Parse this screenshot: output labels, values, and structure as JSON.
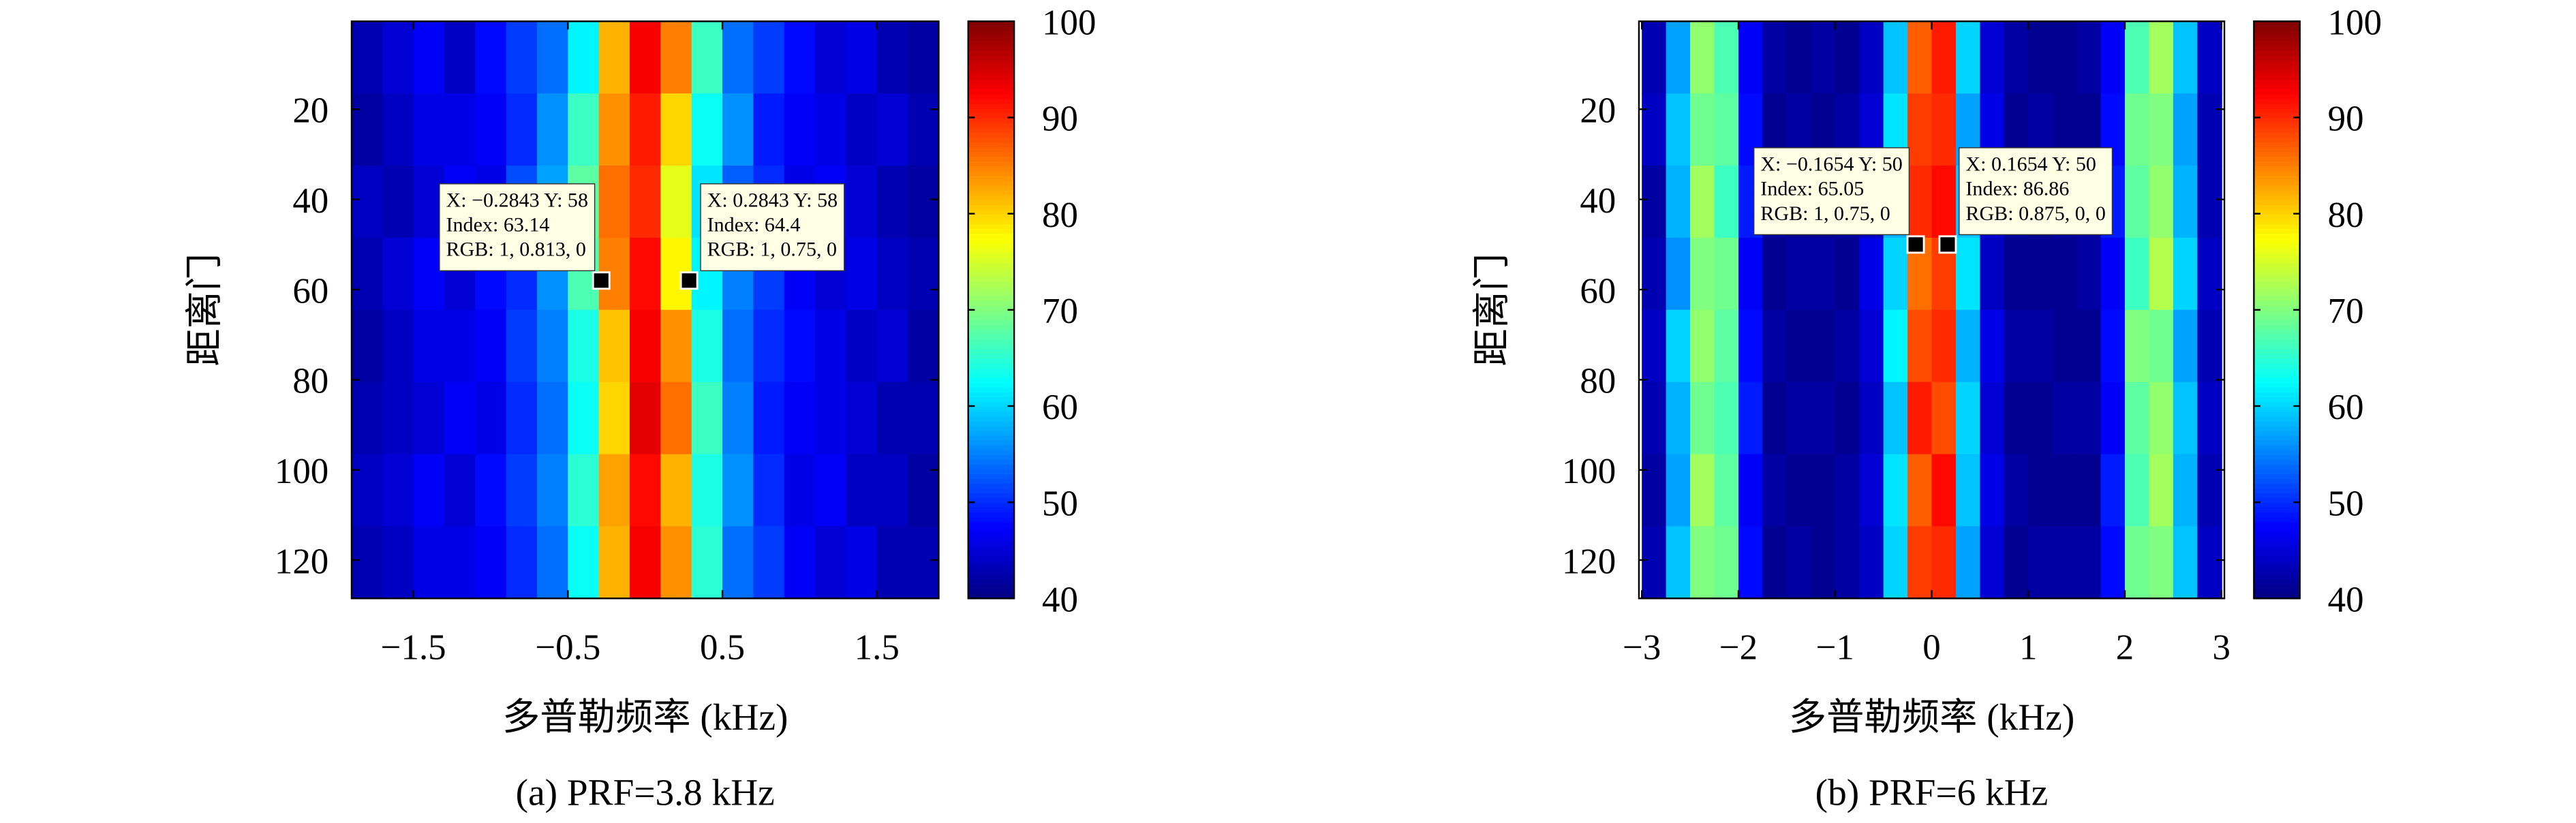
{
  "chart_data": [
    {
      "type": "heatmap",
      "colormap": "jet",
      "x": [
        -1.8,
        -1.6,
        -1.4,
        -1.2,
        -1.0,
        -0.8,
        -0.6,
        -0.4,
        -0.2,
        0,
        0.2,
        0.4,
        0.6,
        0.8,
        1.0,
        1.2,
        1.4,
        1.6,
        1.8
      ],
      "y": [
        8.5,
        24.5,
        40.5,
        56.5,
        72.5,
        88.5,
        104.5,
        120.5
      ],
      "values": [
        [
          43,
          45,
          47,
          44,
          48,
          51,
          54,
          62,
          82,
          93,
          85,
          66,
          54,
          51,
          48,
          45,
          46,
          43,
          42
        ],
        [
          42,
          44,
          46,
          46,
          47,
          50,
          56,
          66,
          84,
          91,
          80,
          63,
          56,
          49,
          47,
          46,
          44,
          45,
          43
        ],
        [
          44,
          43,
          45,
          47,
          46,
          52,
          57,
          68,
          86,
          90,
          76,
          61,
          53,
          50,
          46,
          47,
          45,
          43,
          42
        ],
        [
          43,
          45,
          47,
          45,
          48,
          50,
          56,
          67,
          85,
          92,
          78,
          62,
          55,
          51,
          47,
          45,
          46,
          44,
          43
        ],
        [
          42,
          44,
          46,
          46,
          47,
          51,
          55,
          64,
          81,
          93,
          84,
          64,
          54,
          50,
          48,
          46,
          44,
          45,
          42
        ],
        [
          43,
          44,
          45,
          47,
          46,
          50,
          54,
          63,
          80,
          94,
          86,
          66,
          55,
          49,
          47,
          46,
          45,
          43,
          43
        ],
        [
          44,
          45,
          47,
          45,
          48,
          51,
          55,
          65,
          83,
          92,
          82,
          64,
          56,
          50,
          46,
          47,
          44,
          44,
          42
        ],
        [
          43,
          44,
          46,
          46,
          47,
          50,
          54,
          63,
          82,
          93,
          84,
          65,
          54,
          51,
          47,
          45,
          46,
          43,
          43
        ]
      ],
      "xlim": [
        -1.9,
        1.9
      ],
      "ylim": [
        128.5,
        0.5
      ],
      "xticks": [
        {
          "value": -1.5,
          "label": "−1.5"
        },
        {
          "value": -0.5,
          "label": "−0.5"
        },
        0.5,
        1.5
      ],
      "yticks": [
        20,
        40,
        60,
        80,
        100,
        120
      ],
      "clim": [
        40,
        100
      ],
      "cticks": [
        40,
        50,
        60,
        70,
        80,
        90,
        100
      ],
      "xlabel": "多普勒频率 (kHz)",
      "ylabel": "距离门",
      "caption": "(a) PRF=3.8 kHz",
      "annotations": [
        {
          "x": -0.2843,
          "y": 58,
          "lines": [
            "X: −0.2843  Y: 58",
            "Index: 63.14",
            "RGB: 1, 0.813, 0"
          ]
        },
        {
          "x": 0.2843,
          "y": 58,
          "lines": [
            "X: 0.2843  Y: 58",
            "Index: 64.4",
            "RGB: 1, 0.75, 0"
          ]
        }
      ]
    },
    {
      "type": "heatmap",
      "colormap": "jet",
      "x": [
        -2.875,
        -2.625,
        -2.375,
        -2.125,
        -1.875,
        -1.625,
        -1.375,
        -1.125,
        -0.875,
        -0.625,
        -0.375,
        -0.125,
        0.125,
        0.375,
        0.625,
        0.875,
        1.125,
        1.375,
        1.625,
        1.875,
        2.125,
        2.375,
        2.625,
        2.875
      ],
      "y": [
        8.5,
        24.5,
        40.5,
        56.5,
        72.5,
        88.5,
        104.5,
        120.5
      ],
      "values": [
        [
          43,
          57,
          71,
          67,
          47,
          42,
          41,
          42,
          41,
          44,
          59,
          87,
          91,
          60,
          45,
          42,
          41,
          41,
          42,
          47,
          67,
          72,
          59,
          44
        ],
        [
          44,
          59,
          69,
          68,
          48,
          41,
          42,
          41,
          42,
          45,
          61,
          89,
          90,
          57,
          46,
          41,
          42,
          41,
          41,
          48,
          69,
          70,
          57,
          43
        ],
        [
          42,
          58,
          72,
          66,
          49,
          42,
          41,
          41,
          42,
          44,
          58,
          90,
          92,
          59,
          45,
          42,
          41,
          42,
          42,
          49,
          68,
          71,
          58,
          43
        ],
        [
          43,
          56,
          70,
          69,
          47,
          41,
          42,
          42,
          41,
          46,
          60,
          86,
          89,
          61,
          44,
          41,
          41,
          41,
          42,
          47,
          66,
          73,
          60,
          44
        ],
        [
          44,
          60,
          71,
          68,
          48,
          42,
          41,
          41,
          42,
          45,
          62,
          88,
          90,
          58,
          46,
          42,
          42,
          41,
          41,
          48,
          70,
          69,
          57,
          43
        ],
        [
          43,
          58,
          69,
          67,
          49,
          41,
          42,
          42,
          41,
          44,
          59,
          91,
          88,
          60,
          45,
          41,
          41,
          42,
          42,
          47,
          68,
          71,
          59,
          44
        ],
        [
          42,
          57,
          72,
          68,
          47,
          42,
          41,
          41,
          42,
          45,
          61,
          87,
          92,
          59,
          46,
          42,
          41,
          41,
          41,
          49,
          67,
          72,
          58,
          43
        ],
        [
          43,
          59,
          70,
          69,
          48,
          41,
          42,
          41,
          42,
          44,
          60,
          89,
          90,
          57,
          45,
          41,
          42,
          42,
          42,
          48,
          69,
          70,
          59,
          44
        ]
      ],
      "xlim": [
        -3.03,
        3.03
      ],
      "ylim": [
        128.5,
        0.5
      ],
      "xticks": [
        {
          "value": -3,
          "label": "−3"
        },
        {
          "value": -2,
          "label": "−2"
        },
        {
          "value": -1,
          "label": "−1"
        },
        0,
        1,
        2,
        3
      ],
      "yticks": [
        20,
        40,
        60,
        80,
        100,
        120
      ],
      "clim": [
        40,
        100
      ],
      "cticks": [
        40,
        50,
        60,
        70,
        80,
        90,
        100
      ],
      "xlabel": "多普勒频率 (kHz)",
      "ylabel": "距离门",
      "caption": "(b) PRF=6 kHz",
      "annotations": [
        {
          "x": -0.1654,
          "y": 50,
          "lines": [
            "X: −0.1654  Y: 50",
            "Index: 65.05",
            "RGB: 1, 0.75, 0"
          ]
        },
        {
          "x": 0.1654,
          "y": 50,
          "lines": [
            "X: 0.1654  Y: 50",
            "Index: 86.86",
            "RGB: 0.875, 0, 0"
          ]
        }
      ]
    }
  ]
}
